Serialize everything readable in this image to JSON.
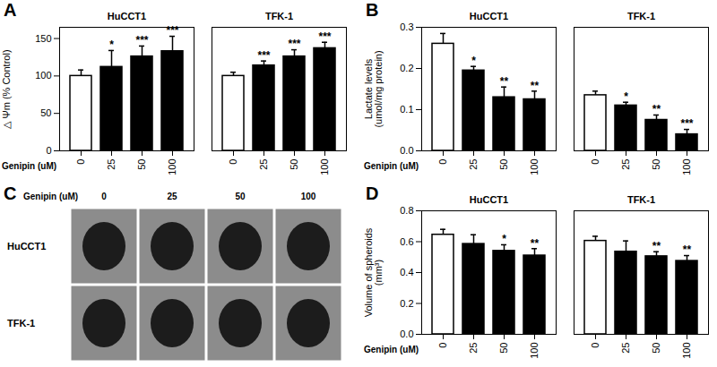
{
  "chart_data": [
    {
      "type": "bar",
      "title": "A",
      "x_label": "Genipin (uM)",
      "y_label": "△ Ψm (% Control)",
      "categories": [
        "0",
        "25",
        "50",
        "100"
      ],
      "series": [
        {
          "name": "HuCCT1",
          "values": [
            100,
            112,
            126,
            133
          ],
          "errors": [
            8,
            22,
            14,
            20
          ],
          "colors": [
            "#ffffff",
            "#000000",
            "#000000",
            "#000000"
          ],
          "significance": [
            null,
            "*",
            "***",
            "***"
          ]
        },
        {
          "name": "TFK-1",
          "values": [
            100,
            114,
            126,
            137
          ],
          "errors": [
            5,
            6,
            9,
            8
          ],
          "colors": [
            "#ffffff",
            "#000000",
            "#000000",
            "#000000"
          ],
          "significance": [
            null,
            "***",
            "***",
            "***"
          ]
        }
      ],
      "ylim": [
        0,
        165
      ],
      "yticks": [
        0,
        50,
        100,
        150
      ]
    },
    {
      "type": "bar",
      "title": "B",
      "x_label": "Genipin (uM)",
      "y_label": "Lactate levels\n(umol/mg protein)",
      "categories": [
        "0",
        "25",
        "50",
        "100"
      ],
      "series": [
        {
          "name": "HuCCT1",
          "values": [
            0.26,
            0.195,
            0.13,
            0.125
          ],
          "errors": [
            0.025,
            0.01,
            0.025,
            0.02
          ],
          "colors": [
            "#ffffff",
            "#000000",
            "#000000",
            "#000000"
          ],
          "significance": [
            null,
            "*",
            "**",
            "**"
          ]
        },
        {
          "name": "TFK-1",
          "values": [
            0.135,
            0.11,
            0.075,
            0.04
          ],
          "errors": [
            0.01,
            0.008,
            0.012,
            0.012
          ],
          "colors": [
            "#ffffff",
            "#000000",
            "#000000",
            "#000000"
          ],
          "significance": [
            null,
            "*",
            "**",
            "***"
          ]
        }
      ],
      "ylim": [
        0,
        0.3
      ],
      "yticks": [
        {
          "value": 0,
          "label": "0.0"
        },
        0.1,
        0.2,
        0.3
      ]
    },
    {
      "type": "bar",
      "title": "D",
      "x_label": "Genipin (uM)",
      "y_label": "Volume of spheroids\n(mm³)",
      "categories": [
        "0",
        "25",
        "50",
        "100"
      ],
      "series": [
        {
          "name": "HuCCT1",
          "values": [
            0.645,
            0.585,
            0.54,
            0.51
          ],
          "errors": [
            0.035,
            0.06,
            0.04,
            0.045
          ],
          "colors": [
            "#ffffff",
            "#000000",
            "#000000",
            "#000000"
          ],
          "significance": [
            null,
            null,
            "*",
            "**"
          ]
        },
        {
          "name": "TFK-1",
          "values": [
            0.605,
            0.535,
            0.505,
            0.475
          ],
          "errors": [
            0.03,
            0.07,
            0.03,
            0.035
          ],
          "colors": [
            "#ffffff",
            "#000000",
            "#000000",
            "#000000"
          ],
          "significance": [
            null,
            null,
            "**",
            "**"
          ]
        }
      ],
      "ylim": [
        0,
        0.8
      ],
      "yticks": [
        {
          "value": 0,
          "label": "0.0"
        },
        0.2,
        0.4,
        0.6,
        0.8
      ]
    }
  ],
  "panel_c": {
    "title": "C",
    "x_label": "Genipin (uM)",
    "columns": [
      "0",
      "25",
      "50",
      "100"
    ],
    "rows": [
      "HuCCT1",
      "TFK-1"
    ]
  }
}
